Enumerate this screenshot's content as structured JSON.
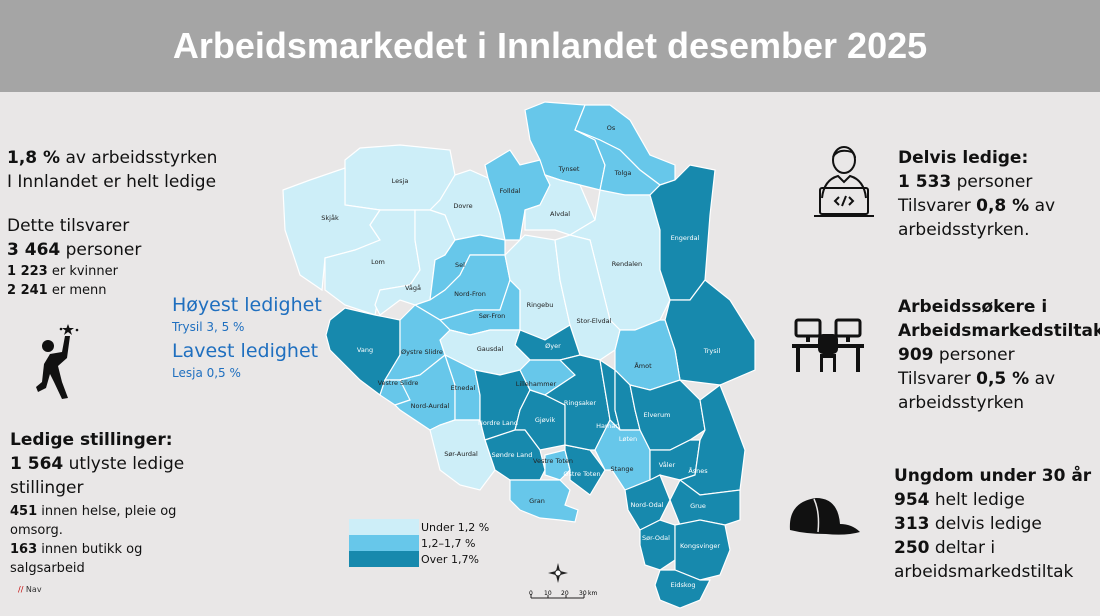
{
  "header": {
    "title": "Arbeidsmarkedet i Innlandet desember 2025"
  },
  "left": {
    "rate_value": "1,8 %",
    "rate_text": " av arbeidsstyrken",
    "rate_line2": "I Innlandet er helt ledige",
    "equiv_label": "Dette tilsvarer",
    "persons_value": "3 464",
    "persons_text": " personer",
    "women_value": "1 223",
    "women_text": " er kvinner",
    "men_value": "2 241",
    "men_text": " er menn",
    "vacancies_title": "Ledige stillinger:",
    "vacancies_value": "1 564",
    "vacancies_text": " utlyste ledige stillinger",
    "health_value": "451",
    "health_text": "  innen helse, pleie og omsorg.",
    "retail_value": "163",
    "retail_text": " innen butikk og salgsarbeid",
    "source_mark": "//",
    "source": " Nav"
  },
  "highlow": {
    "high_title": "Høyest ledighet",
    "high_value": "Trysil 3, 5 %",
    "low_title": "Lavest ledighet",
    "low_value": "Lesja  0,5 %"
  },
  "right": {
    "partial_title": "Delvis ledige:",
    "partial_value": "1 533",
    "partial_text": " personer",
    "partial_share_pre": "Tilsvarer ",
    "partial_share": "0,8 %",
    "partial_share_post": " av arbeidsstyrken.",
    "measures_title": "Arbeidssøkere i Arbeidsmarkedstiltak:",
    "measures_value": "909",
    "measures_text": " personer",
    "measures_share_pre": "Tilsvarer ",
    "measures_share": "0,5 %",
    "measures_share_post": " av arbeidsstyrken",
    "youth_title": "Ungdom under 30 år",
    "youth_unemployed_value": "954",
    "youth_unemployed_text": " helt ledige",
    "youth_partial_value": "313",
    "youth_partial_text": " delvis ledige",
    "youth_measures_value": "250",
    "youth_measures_text": " deltar i arbeidsmarkedstiltak"
  },
  "legend": [
    {
      "label": "Under 1,2 %",
      "color": "#cdeef8"
    },
    {
      "label": "1,2–1,7 %",
      "color": "#67c7ea"
    },
    {
      "label": "Over 1,7%",
      "color": "#1789ad"
    }
  ],
  "scale": {
    "ticks": [
      "0",
      "10",
      "20",
      "30"
    ],
    "unit": "km",
    "north": "N"
  },
  "municipalities": [
    {
      "name": "Lesja",
      "cat": 0
    },
    {
      "name": "Skjåk",
      "cat": 0
    },
    {
      "name": "Dovre",
      "cat": 0
    },
    {
      "name": "Lom",
      "cat": 0
    },
    {
      "name": "Vågå",
      "cat": 0
    },
    {
      "name": "Sel",
      "cat": 1
    },
    {
      "name": "Nord-Fron",
      "cat": 1
    },
    {
      "name": "Sør-Fron",
      "cat": 1
    },
    {
      "name": "Folldal",
      "cat": 1
    },
    {
      "name": "Tynset",
      "cat": 1
    },
    {
      "name": "Os",
      "cat": 1
    },
    {
      "name": "Tolga",
      "cat": 1
    },
    {
      "name": "Alvdal",
      "cat": 0
    },
    {
      "name": "Rendalen",
      "cat": 0
    },
    {
      "name": "Engerdal",
      "cat": 2
    },
    {
      "name": "Trysil",
      "cat": 2
    },
    {
      "name": "Ringebu",
      "cat": 0
    },
    {
      "name": "Stor-Elvdal",
      "cat": 0
    },
    {
      "name": "Åmot",
      "cat": 1
    },
    {
      "name": "Øyer",
      "cat": 2
    },
    {
      "name": "Gausdal",
      "cat": 0
    },
    {
      "name": "Vang",
      "cat": 2
    },
    {
      "name": "Øystre Slidre",
      "cat": 1
    },
    {
      "name": "Vestre Slidre",
      "cat": 1
    },
    {
      "name": "Nord-Aurdal",
      "cat": 1
    },
    {
      "name": "Etnedal",
      "cat": 1
    },
    {
      "name": "Sør-Aurdal",
      "cat": 0
    },
    {
      "name": "Nordre Land",
      "cat": 2
    },
    {
      "name": "Lillehammer",
      "cat": 1
    },
    {
      "name": "Gjøvik",
      "cat": 2
    },
    {
      "name": "Søndre Land",
      "cat": 2
    },
    {
      "name": "Vestre Toten",
      "cat": 1
    },
    {
      "name": "Østre Toten",
      "cat": 2
    },
    {
      "name": "Gran",
      "cat": 1
    },
    {
      "name": "Ringsaker",
      "cat": 2
    },
    {
      "name": "Hamar",
      "cat": 2
    },
    {
      "name": "Løten",
      "cat": 2
    },
    {
      "name": "Stange",
      "cat": 1
    },
    {
      "name": "Elverum",
      "cat": 2
    },
    {
      "name": "Våler",
      "cat": 2
    },
    {
      "name": "Åsnes",
      "cat": 2
    },
    {
      "name": "Nord-Odal",
      "cat": 2
    },
    {
      "name": "Grue",
      "cat": 2
    },
    {
      "name": "Sør-Odal",
      "cat": 2
    },
    {
      "name": "Kongsvinger",
      "cat": 2
    },
    {
      "name": "Eidskog",
      "cat": 2
    }
  ]
}
